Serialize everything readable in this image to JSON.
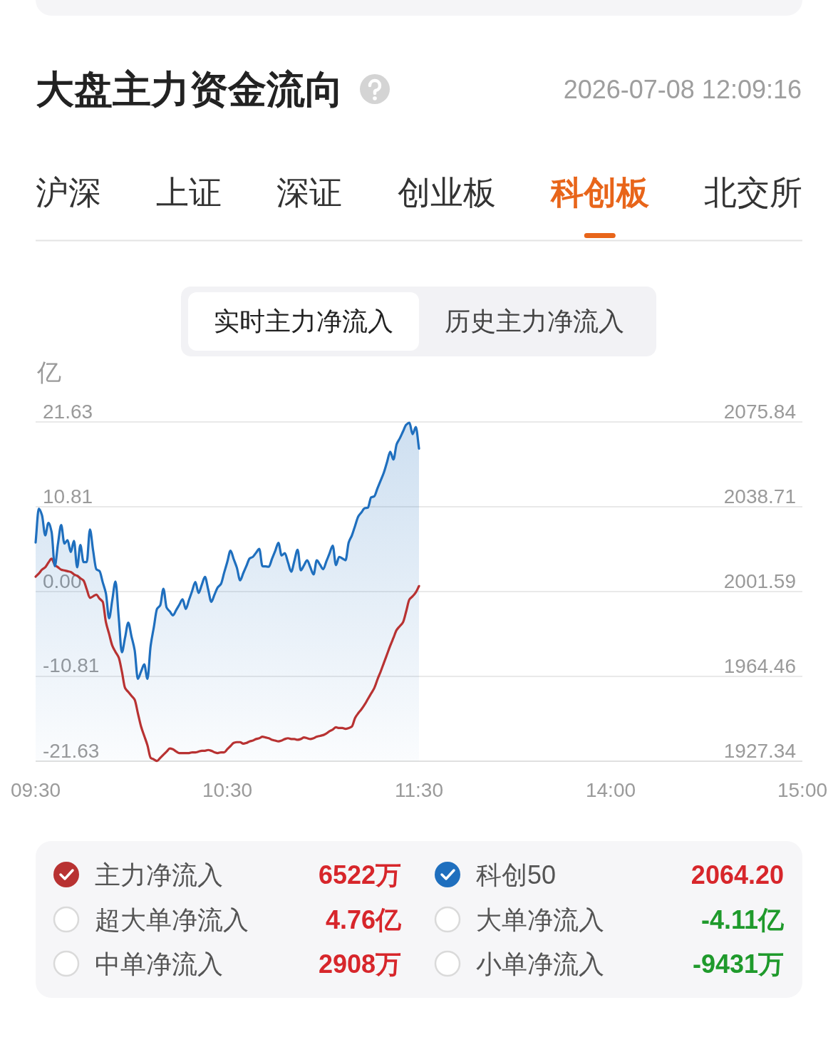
{
  "chart_data": {
    "type": "line",
    "title": "大盘主力资金流向",
    "subtitle": "2026-07-08 12:09:16",
    "ylabel": "亿",
    "categories": [
      "09:30",
      null,
      null,
      null,
      null,
      null,
      null,
      null,
      null,
      null,
      null,
      null,
      null,
      null,
      null,
      null,
      null,
      null,
      null,
      null,
      null,
      null,
      null,
      null,
      null,
      null,
      null,
      null,
      null,
      null,
      null,
      null,
      null,
      null,
      null,
      null,
      null,
      null,
      null,
      null,
      null,
      null,
      null,
      null,
      null,
      null,
      null,
      null,
      null,
      null,
      null,
      null,
      null,
      null,
      null,
      null,
      null,
      null,
      null,
      null,
      "10:30",
      null,
      null,
      null,
      null,
      null,
      null,
      null,
      null,
      null,
      null,
      null,
      null,
      null,
      null,
      null,
      null,
      null,
      null,
      null,
      null,
      null,
      null,
      null,
      null,
      null,
      null,
      null,
      null,
      null,
      null,
      null,
      null,
      null,
      null,
      null,
      null,
      null,
      null,
      null,
      null,
      null,
      null,
      null,
      null,
      null,
      null,
      null,
      null,
      null,
      null,
      null,
      null,
      null,
      null,
      null,
      null,
      null,
      null,
      null,
      "11:30",
      null,
      null,
      null,
      null,
      null,
      null,
      null,
      null,
      null,
      null,
      null,
      null,
      null,
      null,
      null,
      null,
      null,
      null,
      null,
      null,
      null,
      null,
      null,
      null,
      null,
      null,
      null,
      null,
      null,
      null,
      null,
      null,
      null,
      null,
      null,
      null,
      null,
      null,
      null,
      null,
      null,
      null,
      null,
      null,
      null,
      null,
      null,
      null,
      null,
      null,
      null,
      null,
      null,
      null,
      null,
      null,
      null,
      null,
      null,
      "14:00",
      null,
      null,
      null,
      null,
      null,
      null,
      null,
      null,
      null,
      null,
      null,
      null,
      null,
      null,
      null,
      null,
      null,
      null,
      null,
      null,
      null,
      null,
      null,
      null,
      null,
      null,
      null,
      null,
      null,
      null,
      null,
      null,
      null,
      null,
      null,
      null,
      null,
      null,
      null,
      null,
      null,
      null,
      null,
      null,
      null,
      null,
      null,
      null,
      null,
      null,
      null,
      null,
      null,
      null,
      null,
      null,
      null,
      null,
      null,
      "15:00"
    ],
    "ylim": [
      -21.63,
      21.63
    ],
    "yticks": [
      -21.63,
      -10.81,
      {
        "value": 0,
        "label": "0.00"
      },
      10.81,
      21.63
    ],
    "y2lim": [
      1927.34,
      2075.84
    ],
    "y2ticks": [
      1927.34,
      1964.46,
      2001.59,
      2038.71,
      2075.84
    ],
    "grid": "y",
    "legend": "bottom",
    "series": [
      {
        "name": "主力净流入",
        "color": "#b83232",
        "values": [
          1.9,
          2.3,
          2.8,
          3.1,
          3.7,
          4.2,
          3.4,
          3.1,
          2.8,
          2.7,
          2.6,
          2.5,
          2.2,
          2.0,
          1.7,
          1.4,
          0.3,
          -0.8,
          -0.6,
          -0.4,
          -0.9,
          -1.3,
          -3.9,
          -5.4,
          -6.9,
          -7.7,
          -8.4,
          -10.2,
          -12.3,
          -12.8,
          -13.3,
          -13.8,
          -15.5,
          -17.2,
          -18.4,
          -19.6,
          -21.2,
          -21.4,
          -21.6,
          -21.2,
          -20.8,
          -20.4,
          -20.0,
          -20.1,
          -20.4,
          -20.6,
          -20.6,
          -20.6,
          -20.6,
          -20.5,
          -20.5,
          -20.4,
          -20.3,
          -20.3,
          -20.2,
          -20.3,
          -20.5,
          -20.6,
          -20.5,
          -20.5,
          -20.1,
          -19.7,
          -19.3,
          -19.2,
          -19.2,
          -19.4,
          -19.3,
          -19.1,
          -19.0,
          -18.8,
          -18.7,
          -18.5,
          -18.6,
          -18.7,
          -18.9,
          -19.0,
          -19.1,
          -19.0,
          -18.8,
          -18.7,
          -18.8,
          -18.8,
          -18.9,
          -18.8,
          -18.6,
          -18.7,
          -18.8,
          -18.7,
          -18.5,
          -18.4,
          -18.3,
          -18.1,
          -17.8,
          -17.6,
          -17.3,
          -17.4,
          -17.4,
          -17.5,
          -17.4,
          -17.2,
          -16.1,
          -15.5,
          -15.0,
          -14.4,
          -13.7,
          -13.0,
          -12.3,
          -11.2,
          -10.2,
          -9.1,
          -8.0,
          -6.9,
          -5.9,
          -4.9,
          -4.4,
          -3.9,
          -2.5,
          -1.0,
          -0.6,
          -0.1,
          0.7,
          null,
          null,
          null,
          null,
          null,
          null,
          null,
          null,
          null,
          null,
          null,
          null,
          null,
          null,
          null,
          null,
          null,
          null,
          null,
          null,
          null,
          null,
          null,
          null,
          null,
          null,
          null,
          null,
          null,
          null,
          null,
          null,
          null,
          null,
          null,
          null,
          null,
          null,
          null,
          null,
          null,
          null,
          null,
          null,
          null,
          null,
          null,
          null,
          null,
          null,
          null,
          null,
          null,
          null,
          null,
          null,
          null,
          null,
          null,
          null,
          null,
          null,
          null,
          null,
          null,
          null,
          null,
          null,
          null,
          null,
          null,
          null,
          null,
          null,
          null,
          null,
          null,
          null,
          null,
          null,
          null,
          null,
          null,
          null,
          null,
          null,
          null,
          null,
          null,
          null,
          null,
          null,
          null,
          null,
          null,
          null,
          null,
          null,
          null,
          null,
          null,
          null,
          null,
          null,
          null,
          null,
          null,
          null,
          null,
          null,
          null,
          null,
          null,
          null,
          null,
          null,
          null,
          null,
          null,
          null
        ]
      },
      {
        "name": "科创50",
        "type": "area",
        "axis": "y2",
        "color": "#1f6fbe",
        "values": [
          2023.1,
          2037.9,
          2035.0,
          2026.2,
          2031.7,
          2027.7,
          2012.7,
          2022.6,
          2030.7,
          2022.6,
          2024.1,
          2018.9,
          2023.8,
          2012.2,
          2022.0,
          2014.5,
          2014.5,
          2028.8,
          2019.5,
          2011.4,
          2010.6,
          2005.7,
          2000.8,
          1989.9,
          1998.0,
          2006.0,
          1990.5,
          1975.0,
          1981.5,
          1988.0,
          1982.0,
          1975.9,
          1963.4,
          1966.6,
          1969.7,
          1963.4,
          1977.9,
          1986.0,
          1994.0,
          1995.6,
          2002.8,
          1994.6,
          1992.9,
          1991.2,
          1993.5,
          1995.9,
          1998.2,
          1994.0,
          1997.9,
          2001.9,
          2005.8,
          2001.0,
          2004.5,
          2008.0,
          2002.6,
          1997.1,
          2000.3,
          2003.4,
          2004.9,
          2009.8,
          2014.6,
          2019.5,
          2015.8,
          2012.0,
          2006.5,
          2009.7,
          2012.9,
          2016.1,
          2016.8,
          2018.6,
          2020.3,
          2012.7,
          2012.6,
          2012.5,
          2016.0,
          2019.4,
          2022.9,
          2017.4,
          2018.4,
          2014.4,
          2010.3,
          2015.1,
          2019.9,
          2010.9,
          2013.1,
          2015.3,
          2012.2,
          2009.1,
          2015.3,
          2013.4,
          2011.4,
          2014.8,
          2018.3,
          2021.7,
          2013.2,
          2016.8,
          2016.1,
          2015.3,
          2023.1,
          2026.2,
          2030.4,
          2034.5,
          2036.3,
          2038.1,
          2038.3,
          2042.8,
          2043.3,
          2046.8,
          2050.2,
          2053.7,
          2058.3,
          2062.8,
          2059.4,
          2066.1,
          2068.7,
          2071.7,
          2074.6,
          2075.5,
          2070.5,
          2073.6,
          2064.2,
          null,
          null,
          null,
          null,
          null,
          null,
          null,
          null,
          null,
          null,
          null,
          null,
          null,
          null,
          null,
          null,
          null,
          null,
          null,
          null,
          null,
          null,
          null,
          null,
          null,
          null,
          null,
          null,
          null,
          null,
          null,
          null,
          null,
          null,
          null,
          null,
          null,
          null,
          null,
          null,
          null,
          null,
          null,
          null,
          null,
          null,
          null,
          null,
          null,
          null,
          null,
          null,
          null,
          null,
          null,
          null,
          null,
          null,
          null,
          null,
          null,
          null,
          null,
          null,
          null,
          null,
          null,
          null,
          null,
          null,
          null,
          null,
          null,
          null,
          null,
          null,
          null,
          null,
          null,
          null,
          null,
          null,
          null,
          null,
          null,
          null,
          null,
          null,
          null,
          null,
          null,
          null,
          null,
          null,
          null,
          null,
          null,
          null,
          null,
          null,
          null,
          null,
          null,
          null,
          null,
          null,
          null,
          null,
          null,
          null,
          null,
          null,
          null,
          null,
          null,
          null,
          null,
          null,
          null,
          null
        ]
      }
    ],
    "annotations": [
      "沪深",
      "上证",
      "深证",
      "创业板",
      "科创板",
      "北交所",
      "实时主力净流入",
      "历史主力净流入",
      "6522万",
      "2064.20",
      "超大单净流入",
      "4.76亿",
      "大单净流入",
      "-4.11亿",
      "中单净流入",
      "2908万",
      "小单净流入",
      "-9431万"
    ]
  }
}
